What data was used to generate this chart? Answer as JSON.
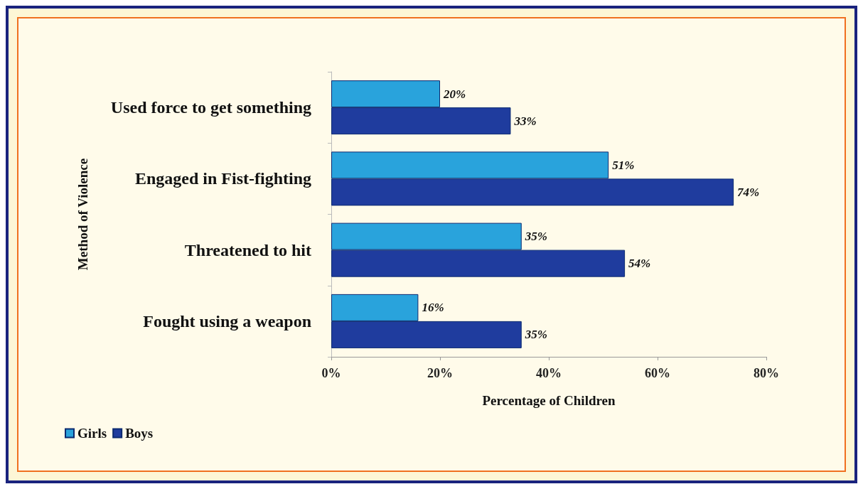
{
  "chart_data": {
    "type": "bar",
    "orientation": "horizontal",
    "categories": [
      "Used force to get something",
      "Engaged in Fist-fighting",
      "Threatened to hit",
      "Fought using a weapon"
    ],
    "series": [
      {
        "name": "Girls",
        "color": "#29a3dc",
        "values": [
          20,
          51,
          35,
          16
        ],
        "value_labels": [
          "20%",
          "51%",
          "35%",
          "16%"
        ]
      },
      {
        "name": "Boys",
        "color": "#1f3c9e",
        "values": [
          33,
          74,
          54,
          35
        ],
        "value_labels": [
          "33%",
          "74%",
          "54%",
          "35%"
        ]
      }
    ],
    "xlim": [
      0,
      80
    ],
    "xticks": [
      {
        "value": 0,
        "label": "0%"
      },
      {
        "value": 20,
        "label": "20%"
      },
      {
        "value": 40,
        "label": "40%"
      },
      {
        "value": 60,
        "label": "60%"
      },
      {
        "value": 80,
        "label": "80%"
      }
    ],
    "xlabel": "Percentage of Children",
    "ylabel": "Method of Violence",
    "legend": "bottom left",
    "grid": false
  }
}
